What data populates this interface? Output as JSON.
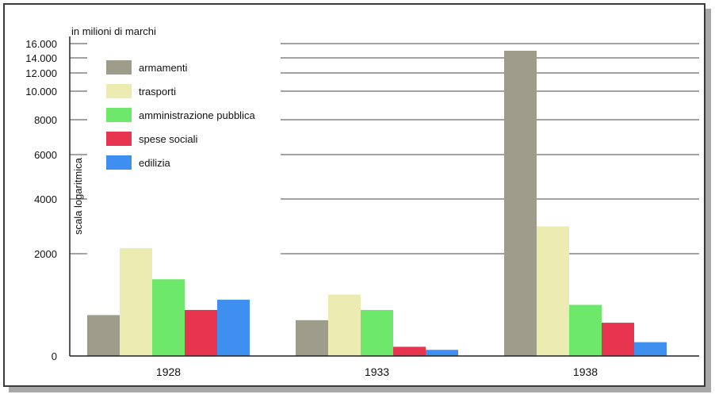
{
  "chart_data": {
    "type": "bar",
    "unit_label": "in milioni di marchi",
    "ylabel": "scala logaritmica",
    "scale": "log",
    "categories": [
      "1928",
      "1933",
      "1938"
    ],
    "series": [
      {
        "name": "armamenti",
        "color": "#9e9d8c",
        "values": [
          800,
          700,
          15000
        ]
      },
      {
        "name": "trasporti",
        "color": "#ecebb2",
        "values": [
          2200,
          1200,
          3000
        ]
      },
      {
        "name": "amministrazione pubblica",
        "color": "#6ee86a",
        "values": [
          1500,
          900,
          1000
        ]
      },
      {
        "name": "spese sociali",
        "color": "#e8354f",
        "values": [
          900,
          180,
          650
        ]
      },
      {
        "name": "edilizia",
        "color": "#3f8ff0",
        "values": [
          1100,
          120,
          270
        ]
      }
    ],
    "y_ticks": [
      {
        "value": 0,
        "label": "0"
      },
      {
        "value": 2000,
        "label": "2000"
      },
      {
        "value": 4000,
        "label": "4000"
      },
      {
        "value": 6000,
        "label": "6000"
      },
      {
        "value": 8000,
        "label": "8000"
      },
      {
        "value": 10000,
        "label": "10.000"
      },
      {
        "value": 12000,
        "label": "12.000"
      },
      {
        "value": 14000,
        "label": "14.000"
      },
      {
        "value": 16000,
        "label": "16.000"
      }
    ],
    "ylim": [
      0,
      16000
    ],
    "grid": true,
    "legend": "top-left"
  }
}
